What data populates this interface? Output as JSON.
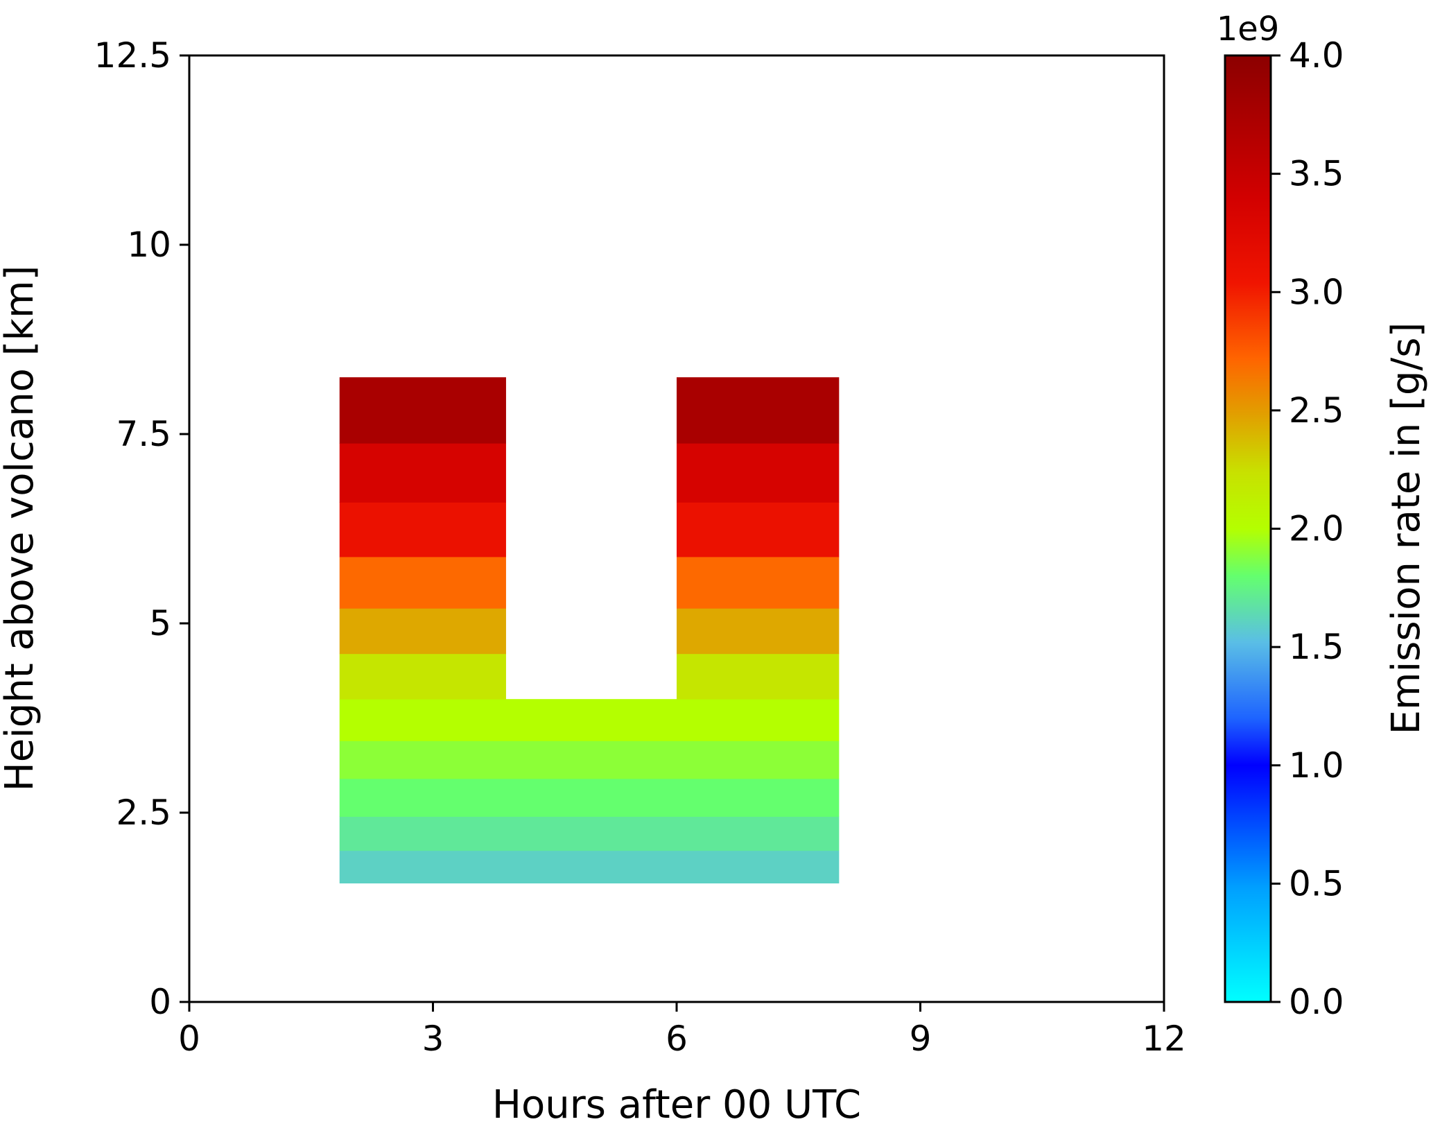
{
  "chart_data": {
    "type": "heatmap",
    "title": "",
    "xlabel": "Hours after 00 UTC",
    "ylabel": "Height above volcano [km]",
    "xlim": [
      0,
      12
    ],
    "ylim": [
      0,
      12.5
    ],
    "xticks": [
      0,
      3,
      6,
      9,
      12
    ],
    "xtick_labels": [
      "0",
      "3",
      "6",
      "9",
      "12"
    ],
    "yticks": [
      0,
      2.5,
      5,
      7.5,
      10,
      12.5
    ],
    "ytick_labels": [
      "0",
      "2.5",
      "5",
      "7.5",
      "10",
      "12.5"
    ],
    "grid": false,
    "colorbar": {
      "label": "Emission rate in [g/s]",
      "multiplier_label": "1e9",
      "range": [
        0.0,
        4.0
      ],
      "ticks": [
        0.0,
        0.5,
        1.0,
        1.5,
        2.0,
        2.5,
        3.0,
        3.5,
        4.0
      ],
      "tick_labels": [
        "0.0",
        "0.5",
        "1.0",
        "1.5",
        "2.0",
        "2.5",
        "3.0",
        "3.5",
        "4.0"
      ],
      "colormap": "jet-like (cyan-blue-green-yellow-orange-red-darkred)"
    },
    "cells": [
      {
        "x0": 1.85,
        "x1": 8.0,
        "y0": 1.57,
        "y1": 2.0,
        "value": 1.6
      },
      {
        "x0": 1.85,
        "x1": 8.0,
        "y0": 2.0,
        "y1": 2.45,
        "value": 1.7
      },
      {
        "x0": 1.85,
        "x1": 8.0,
        "y0": 2.45,
        "y1": 2.95,
        "value": 1.8
      },
      {
        "x0": 1.85,
        "x1": 8.0,
        "y0": 2.95,
        "y1": 3.45,
        "value": 1.9
      },
      {
        "x0": 1.85,
        "x1": 8.0,
        "y0": 3.45,
        "y1": 4.0,
        "value": 2.0
      },
      {
        "x0": 1.85,
        "x1": 3.9,
        "y0": 4.0,
        "y1": 4.6,
        "value": 2.2
      },
      {
        "x0": 1.85,
        "x1": 3.9,
        "y0": 4.6,
        "y1": 5.2,
        "value": 2.45
      },
      {
        "x0": 1.85,
        "x1": 3.9,
        "y0": 5.2,
        "y1": 5.88,
        "value": 2.7
      },
      {
        "x0": 1.85,
        "x1": 3.9,
        "y0": 5.88,
        "y1": 6.6,
        "value": 3.1
      },
      {
        "x0": 1.85,
        "x1": 3.9,
        "y0": 6.6,
        "y1": 7.38,
        "value": 3.35
      },
      {
        "x0": 1.85,
        "x1": 3.9,
        "y0": 7.38,
        "y1": 8.25,
        "value": 3.75
      },
      {
        "x0": 6.0,
        "x1": 8.0,
        "y0": 4.0,
        "y1": 4.6,
        "value": 2.2
      },
      {
        "x0": 6.0,
        "x1": 8.0,
        "y0": 4.6,
        "y1": 5.2,
        "value": 2.45
      },
      {
        "x0": 6.0,
        "x1": 8.0,
        "y0": 5.2,
        "y1": 5.88,
        "value": 2.7
      },
      {
        "x0": 6.0,
        "x1": 8.0,
        "y0": 5.88,
        "y1": 6.6,
        "value": 3.1
      },
      {
        "x0": 6.0,
        "x1": 8.0,
        "y0": 6.6,
        "y1": 7.38,
        "value": 3.35
      },
      {
        "x0": 6.0,
        "x1": 8.0,
        "y0": 7.38,
        "y1": 8.25,
        "value": 3.75
      }
    ]
  }
}
